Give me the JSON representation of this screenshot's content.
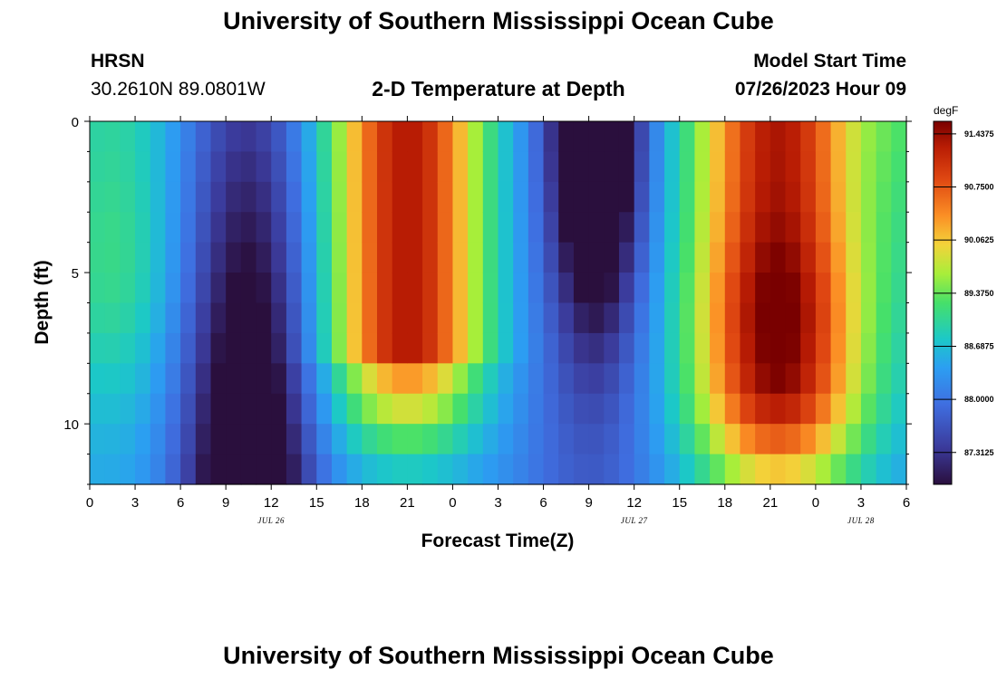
{
  "page": {
    "title_top": "University of Southern Mississippi Ocean Cube",
    "title_bottom": "University of Southern Mississippi Ocean Cube",
    "station": "HRSN",
    "coords": "30.2610N  89.0801W",
    "subtitle": "2-D Temperature at Depth",
    "model_start_label": "Model Start Time",
    "model_start_value": "07/26/2023 Hour 09"
  },
  "chart_data": {
    "type": "heatmap",
    "title": "2-D Temperature at Depth",
    "xlabel": "Forecast Time(Z)",
    "ylabel": "Depth (ft)",
    "x_hours": [
      0,
      54
    ],
    "y_depth_ft": [
      0,
      12
    ],
    "x_tick_labels": [
      "0",
      "3",
      "6",
      "9",
      "12",
      "15",
      "18",
      "21",
      "0",
      "3",
      "6",
      "9",
      "12",
      "15",
      "18",
      "21",
      "0",
      "3",
      "6"
    ],
    "x_tick_hours": [
      0,
      3,
      6,
      9,
      12,
      15,
      18,
      21,
      24,
      27,
      30,
      33,
      36,
      39,
      42,
      45,
      48,
      51,
      54
    ],
    "date_labels": [
      {
        "text": "JUL 26",
        "hour": 12
      },
      {
        "text": "JUL 27",
        "hour": 36
      },
      {
        "text": "JUL 28",
        "hour": 51
      }
    ],
    "y_tick_labels": [
      "0",
      "5",
      "10"
    ],
    "y_tick_values": [
      0,
      5,
      10
    ],
    "colorbar": {
      "unit": "degF",
      "min": 86.9,
      "max": 91.6,
      "labels": [
        "91.4375",
        "90.7500",
        "90.0625",
        "89.3750",
        "88.6875",
        "88.0000",
        "87.3125"
      ],
      "label_values": [
        91.4375,
        90.75,
        90.0625,
        89.375,
        88.6875,
        88.0,
        87.3125
      ]
    },
    "time_step_hours": 1,
    "depth_levels": 12,
    "field_description_values_degF": {
      "warm_max": 91.5,
      "cold_min": 87.0
    }
  }
}
